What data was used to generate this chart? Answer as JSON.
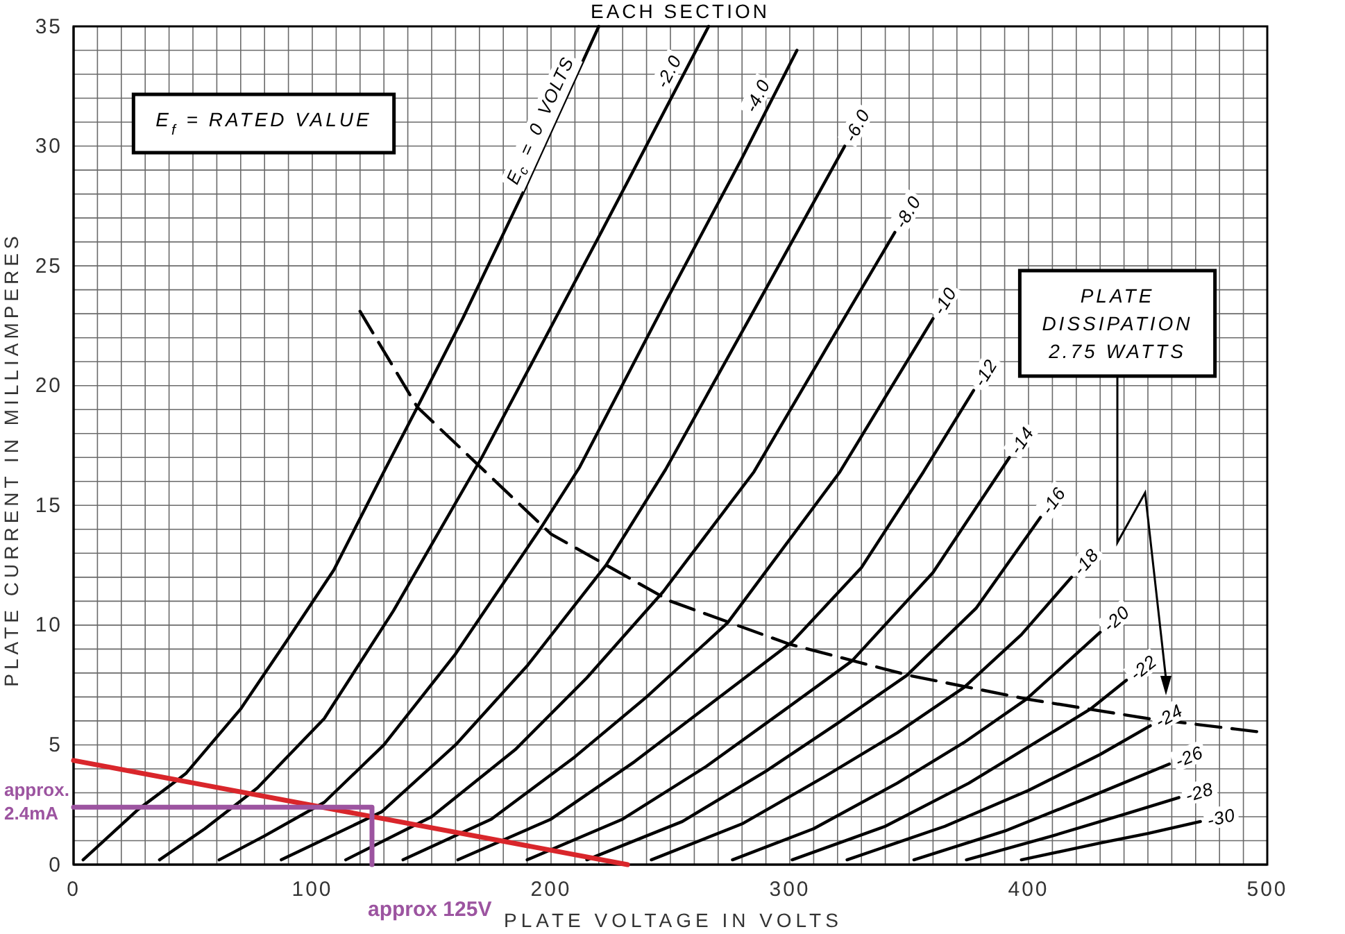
{
  "chart_data": {
    "type": "line",
    "title": "EACH SECTION",
    "xlabel": "PLATE VOLTAGE IN VOLTS",
    "ylabel": "PLATE CURRENT IN MILLIAMPERES",
    "xlim": [
      0,
      500
    ],
    "ylim": [
      0,
      35
    ],
    "xticks": [
      0,
      {
        "value": 10,
        "label": null
      },
      {
        "value": 20,
        "label": null
      },
      {
        "value": 30,
        "label": null
      },
      {
        "value": 40,
        "label": null
      },
      {
        "value": 50,
        "label": null
      },
      {
        "value": 60,
        "label": null
      },
      {
        "value": 70,
        "label": null
      },
      {
        "value": 80,
        "label": null
      },
      {
        "value": 90,
        "label": null
      },
      100,
      {
        "value": 110,
        "label": null
      },
      {
        "value": 120,
        "label": null
      },
      {
        "value": 130,
        "label": null
      },
      {
        "value": 140,
        "label": null
      },
      {
        "value": 150,
        "label": null
      },
      {
        "value": 160,
        "label": null
      },
      {
        "value": 170,
        "label": null
      },
      {
        "value": 180,
        "label": null
      },
      {
        "value": 190,
        "label": null
      },
      200,
      {
        "value": 210,
        "label": null
      },
      {
        "value": 220,
        "label": null
      },
      {
        "value": 230,
        "label": null
      },
      {
        "value": 240,
        "label": null
      },
      {
        "value": 250,
        "label": null
      },
      {
        "value": 260,
        "label": null
      },
      {
        "value": 270,
        "label": null
      },
      {
        "value": 280,
        "label": null
      },
      {
        "value": 290,
        "label": null
      },
      300,
      {
        "value": 310,
        "label": null
      },
      {
        "value": 320,
        "label": null
      },
      {
        "value": 330,
        "label": null
      },
      {
        "value": 340,
        "label": null
      },
      {
        "value": 350,
        "label": null
      },
      {
        "value": 360,
        "label": null
      },
      {
        "value": 370,
        "label": null
      },
      {
        "value": 380,
        "label": null
      },
      {
        "value": 390,
        "label": null
      },
      400,
      {
        "value": 410,
        "label": null
      },
      {
        "value": 420,
        "label": null
      },
      {
        "value": 430,
        "label": null
      },
      {
        "value": 440,
        "label": null
      },
      {
        "value": 450,
        "label": null
      },
      {
        "value": 460,
        "label": null
      },
      {
        "value": 470,
        "label": null
      },
      {
        "value": 480,
        "label": null
      },
      {
        "value": 490,
        "label": null
      },
      500
    ],
    "yticks": [
      0,
      {
        "value": 1,
        "label": null
      },
      {
        "value": 2,
        "label": null
      },
      {
        "value": 3,
        "label": null
      },
      {
        "value": 4,
        "label": null
      },
      5,
      {
        "value": 6,
        "label": null
      },
      {
        "value": 7,
        "label": null
      },
      {
        "value": 8,
        "label": null
      },
      {
        "value": 9,
        "label": null
      },
      10,
      {
        "value": 11,
        "label": null
      },
      {
        "value": 12,
        "label": null
      },
      {
        "value": 13,
        "label": null
      },
      {
        "value": 14,
        "label": null
      },
      15,
      {
        "value": 16,
        "label": null
      },
      {
        "value": 17,
        "label": null
      },
      {
        "value": 18,
        "label": null
      },
      {
        "value": 19,
        "label": null
      },
      20,
      {
        "value": 21,
        "label": null
      },
      {
        "value": 22,
        "label": null
      },
      {
        "value": 23,
        "label": null
      },
      {
        "value": 24,
        "label": null
      },
      25,
      {
        "value": 26,
        "label": null
      },
      {
        "value": 27,
        "label": null
      },
      {
        "value": 28,
        "label": null
      },
      {
        "value": 29,
        "label": null
      },
      30,
      {
        "value": 31,
        "label": null
      },
      {
        "value": 32,
        "label": null
      },
      {
        "value": 33,
        "label": null
      },
      {
        "value": 34,
        "label": null
      },
      35
    ],
    "grid": true,
    "marker": "none",
    "line_style": "solid",
    "series": [
      {
        "name": "E$_{c}$ = 0 VOLTS",
        "color": "#000000",
        "x": [
          4,
          27,
          47,
          70,
          89,
          109,
          131,
          144,
          163,
          188,
          220
        ],
        "values": [
          0.2,
          2.3,
          3.8,
          6.5,
          9.3,
          12.3,
          16.6,
          19.1,
          22.8,
          28.0,
          35
        ]
      },
      {
        "name": "-2.0",
        "color": "#000000",
        "x": [
          36,
          55,
          77,
          105,
          134,
          171,
          196,
          221,
          266
        ],
        "values": [
          0.2,
          1.5,
          3.2,
          6.1,
          10.6,
          17,
          21.7,
          26.4,
          35
        ]
      },
      {
        "name": "-4.0",
        "color": "#000000",
        "x": [
          61,
          80,
          105,
          130,
          160,
          196,
          212,
          248,
          280,
          303
        ],
        "values": [
          0.2,
          1.2,
          2.6,
          5,
          8.8,
          14.1,
          16.6,
          23.5,
          29.5,
          34
        ]
      },
      {
        "name": "-6.0",
        "color": "#000000",
        "x": [
          87,
          129,
          160,
          190,
          223,
          248,
          287,
          323
        ],
        "values": [
          0.2,
          2.2,
          5,
          8.3,
          12.5,
          16.5,
          23.5,
          30
        ]
      },
      {
        "name": "-8.0",
        "color": "#000000",
        "x": [
          114,
          150,
          185,
          215,
          247,
          285,
          315,
          344
        ],
        "values": [
          0.2,
          2,
          4.8,
          7.8,
          11.4,
          16.4,
          21.5,
          26.4
        ]
      },
      {
        "name": "-10",
        "color": "#000000",
        "x": [
          138,
          175,
          210,
          240,
          274,
          321,
          360
        ],
        "values": [
          0.2,
          1.9,
          4.5,
          7,
          10.1,
          16.4,
          22.8
        ]
      },
      {
        "name": "-12",
        "color": "#000000",
        "x": [
          161,
          200,
          235,
          268,
          301,
          330,
          356,
          377
        ],
        "values": [
          0.2,
          1.9,
          4.3,
          6.8,
          9.3,
          12.4,
          16.4,
          19.8
        ]
      },
      {
        "name": "-14",
        "color": "#000000",
        "x": [
          190,
          230,
          265,
          297,
          326,
          360,
          392
        ],
        "values": [
          0.2,
          1.9,
          4.1,
          6.4,
          8.5,
          12.2,
          17
        ]
      },
      {
        "name": "-16",
        "color": "#000000",
        "x": [
          215,
          255,
          290,
          320,
          349,
          378,
          405
        ],
        "values": [
          0.2,
          1.8,
          3.9,
          5.9,
          7.9,
          10.7,
          14.5
        ]
      },
      {
        "name": "-18",
        "color": "#000000",
        "x": [
          242,
          280,
          315,
          345,
          373,
          397,
          418
        ],
        "values": [
          0.2,
          1.7,
          3.7,
          5.5,
          7.4,
          9.6,
          12
        ]
      },
      {
        "name": "-20",
        "color": "#000000",
        "x": [
          276,
          310,
          345,
          373,
          399,
          430
        ],
        "values": [
          0.2,
          1.5,
          3.4,
          5.1,
          6.9,
          9.7
        ]
      },
      {
        "name": "-22",
        "color": "#000000",
        "x": [
          301,
          340,
          375,
          403,
          426,
          441
        ],
        "values": [
          0.2,
          1.6,
          3.4,
          5.1,
          6.5,
          7.7
        ]
      },
      {
        "name": "-24",
        "color": "#000000",
        "x": [
          324,
          365,
          400,
          430,
          451
        ],
        "values": [
          0.2,
          1.6,
          3.1,
          4.6,
          5.8
        ]
      },
      {
        "name": "-26",
        "color": "#000000",
        "x": [
          352,
          390,
          425,
          459
        ],
        "values": [
          0.2,
          1.4,
          2.8,
          4.2
        ]
      },
      {
        "name": "-28",
        "color": "#000000",
        "x": [
          374,
          410,
          440,
          463
        ],
        "values": [
          0.2,
          1.2,
          2.1,
          2.8
        ]
      },
      {
        "name": "-30",
        "color": "#000000",
        "x": [
          397,
          430,
          450,
          472
        ],
        "values": [
          0.2,
          0.9,
          1.3,
          1.8
        ]
      },
      {
        "color": "#000000",
        "line_style": "dashed",
        "x": [
          120,
          144,
          200,
          250,
          300,
          350,
          400,
          450,
          500
        ],
        "values": [
          23.1,
          19.1,
          13.8,
          11,
          9.2,
          7.9,
          6.9,
          6.1,
          5.5
        ]
      },
      {
        "color": "#d9262b",
        "x": [
          0,
          232
        ],
        "values": [
          4.35,
          0
        ]
      },
      {
        "color": "#9c54a0",
        "x": [
          0,
          125,
          125
        ],
        "values": [
          2.4,
          2.4,
          0
        ]
      }
    ],
    "annotations": [
      "E$_{f}$ = RATED VALUE",
      "PLATE DISSIPATION 2.75 WATTS",
      {
        "text": "approx. 2.4mA",
        "x": 0,
        "y": 2.4
      },
      {
        "text": "approx 125V",
        "x": 125,
        "y": 0
      }
    ]
  }
}
